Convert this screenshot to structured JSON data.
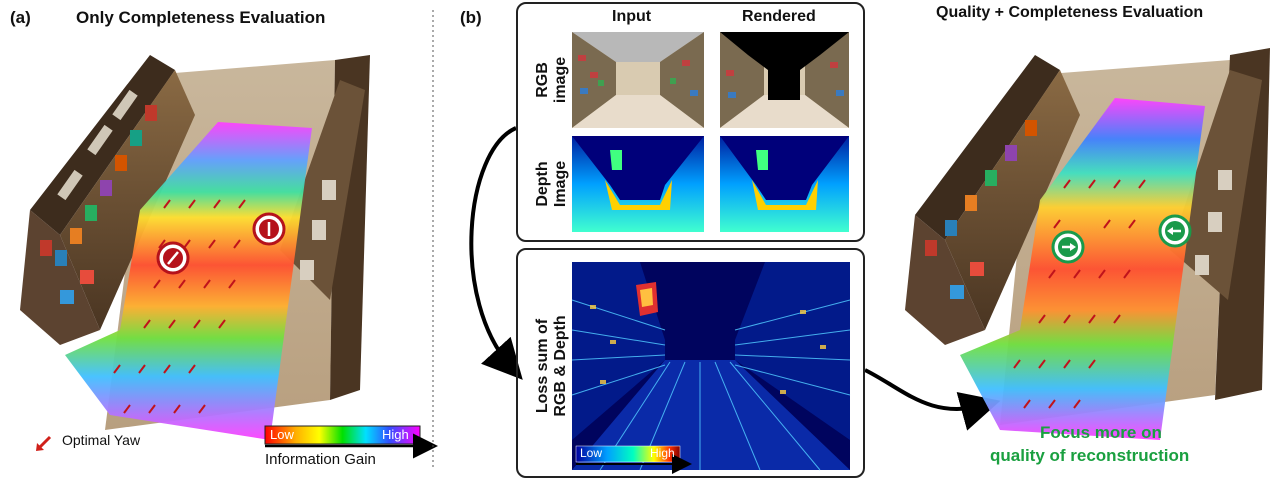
{
  "panel_a": {
    "letter": "(a)",
    "title": "Only Completeness Evaluation",
    "legend_marker_label": "Optimal Yaw",
    "colorbar": {
      "low": "Low",
      "high": "High",
      "caption": "Information Gain"
    }
  },
  "panel_b": {
    "letter": "(b)",
    "col_input": "Input",
    "col_rendered": "Rendered",
    "row_rgb_1": "RGB",
    "row_rgb_2": "image",
    "row_depth_1": "Depth",
    "row_depth_2": "Image",
    "loss_label_1": "Loss sum of",
    "loss_label_2": "RGB & Depth",
    "loss_colorbar": {
      "low": "Low",
      "high": "High"
    }
  },
  "panel_c": {
    "title": "Quality + Completeness Evaluation",
    "focus_line_1": "Focus more on",
    "focus_line_2": "quality of reconstruction"
  },
  "colors": {
    "optimal_yaw_arrow": "#d0201a",
    "circle_red": "#b5121b",
    "circle_green": "#1a9a4a",
    "focus_text": "#1aa040",
    "divider": "#555555"
  }
}
